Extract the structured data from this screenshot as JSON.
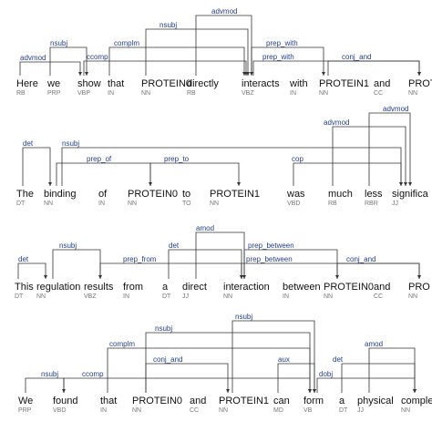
{
  "sentences": [
    {
      "tokens": [
        {
          "word": "Here",
          "tag": "RB"
        },
        {
          "word": "we",
          "tag": "PRP"
        },
        {
          "word": "show",
          "tag": "VBP"
        },
        {
          "word": "that",
          "tag": "IN"
        },
        {
          "word": "PROTEIN0",
          "tag": "NN"
        },
        {
          "word": "directly",
          "tag": "RB"
        },
        {
          "word": "interacts",
          "tag": "VBZ"
        },
        {
          "word": "with",
          "tag": "IN"
        },
        {
          "word": "PROTEIN1",
          "tag": "NN"
        },
        {
          "word": "and",
          "tag": "CC"
        },
        {
          "word": "PROT",
          "tag": "NN"
        }
      ],
      "arcs": [
        {
          "label": "advmod"
        },
        {
          "label": "nsubj"
        },
        {
          "label": "ccomp"
        },
        {
          "label": "complm"
        },
        {
          "label": "nsubj"
        },
        {
          "label": "advmod"
        },
        {
          "label": "prep_with"
        },
        {
          "label": "prep_with"
        },
        {
          "label": "conj_and"
        }
      ]
    },
    {
      "tokens": [
        {
          "word": "The",
          "tag": "DT"
        },
        {
          "word": "binding",
          "tag": "NN"
        },
        {
          "word": "of",
          "tag": "IN"
        },
        {
          "word": "PROTEIN0",
          "tag": "NN"
        },
        {
          "word": "to",
          "tag": "TO"
        },
        {
          "word": "PROTEIN1",
          "tag": "NN"
        },
        {
          "word": "was",
          "tag": "VBD"
        },
        {
          "word": "much",
          "tag": "RB"
        },
        {
          "word": "less",
          "tag": "RBR"
        },
        {
          "word": "significa",
          "tag": "JJ"
        }
      ],
      "arcs": [
        {
          "label": "det"
        },
        {
          "label": "nsubj"
        },
        {
          "label": "prep_of"
        },
        {
          "label": "prep_to"
        },
        {
          "label": "cop"
        },
        {
          "label": "advmod"
        },
        {
          "label": "advmod"
        }
      ]
    },
    {
      "tokens": [
        {
          "word": "This",
          "tag": "DT"
        },
        {
          "word": "regulation",
          "tag": "NN"
        },
        {
          "word": "results",
          "tag": "VBZ"
        },
        {
          "word": "from",
          "tag": "IN"
        },
        {
          "word": "a",
          "tag": "DT"
        },
        {
          "word": "direct",
          "tag": "JJ"
        },
        {
          "word": "interaction",
          "tag": "NN"
        },
        {
          "word": "between",
          "tag": "IN"
        },
        {
          "word": "PROTEIN0",
          "tag": "NN"
        },
        {
          "word": "and",
          "tag": "CC"
        },
        {
          "word": "PRO",
          "tag": "NN"
        }
      ],
      "arcs": [
        {
          "label": "det"
        },
        {
          "label": "nsubj"
        },
        {
          "label": "prep_from"
        },
        {
          "label": "det"
        },
        {
          "label": "amod"
        },
        {
          "label": "prep_between"
        },
        {
          "label": "prep_between"
        },
        {
          "label": "conj_and"
        }
      ]
    },
    {
      "tokens": [
        {
          "word": "We",
          "tag": "PRP"
        },
        {
          "word": "found",
          "tag": "VBD"
        },
        {
          "word": "that",
          "tag": "IN"
        },
        {
          "word": "PROTEIN0",
          "tag": "NN"
        },
        {
          "word": "and",
          "tag": "CC"
        },
        {
          "word": "PROTEIN1",
          "tag": "NN"
        },
        {
          "word": "can",
          "tag": "MD"
        },
        {
          "word": "form",
          "tag": "VB"
        },
        {
          "word": "a",
          "tag": "DT"
        },
        {
          "word": "physical",
          "tag": "JJ"
        },
        {
          "word": "complex",
          "tag": "NN"
        }
      ],
      "arcs": [
        {
          "label": "nsubj"
        },
        {
          "label": "ccomp"
        },
        {
          "label": "complm"
        },
        {
          "label": "conj_and"
        },
        {
          "label": "nsubj"
        },
        {
          "label": "nsubj"
        },
        {
          "label": "aux"
        },
        {
          "label": "dobj"
        },
        {
          "label": "det"
        },
        {
          "label": "amod"
        }
      ]
    }
  ]
}
